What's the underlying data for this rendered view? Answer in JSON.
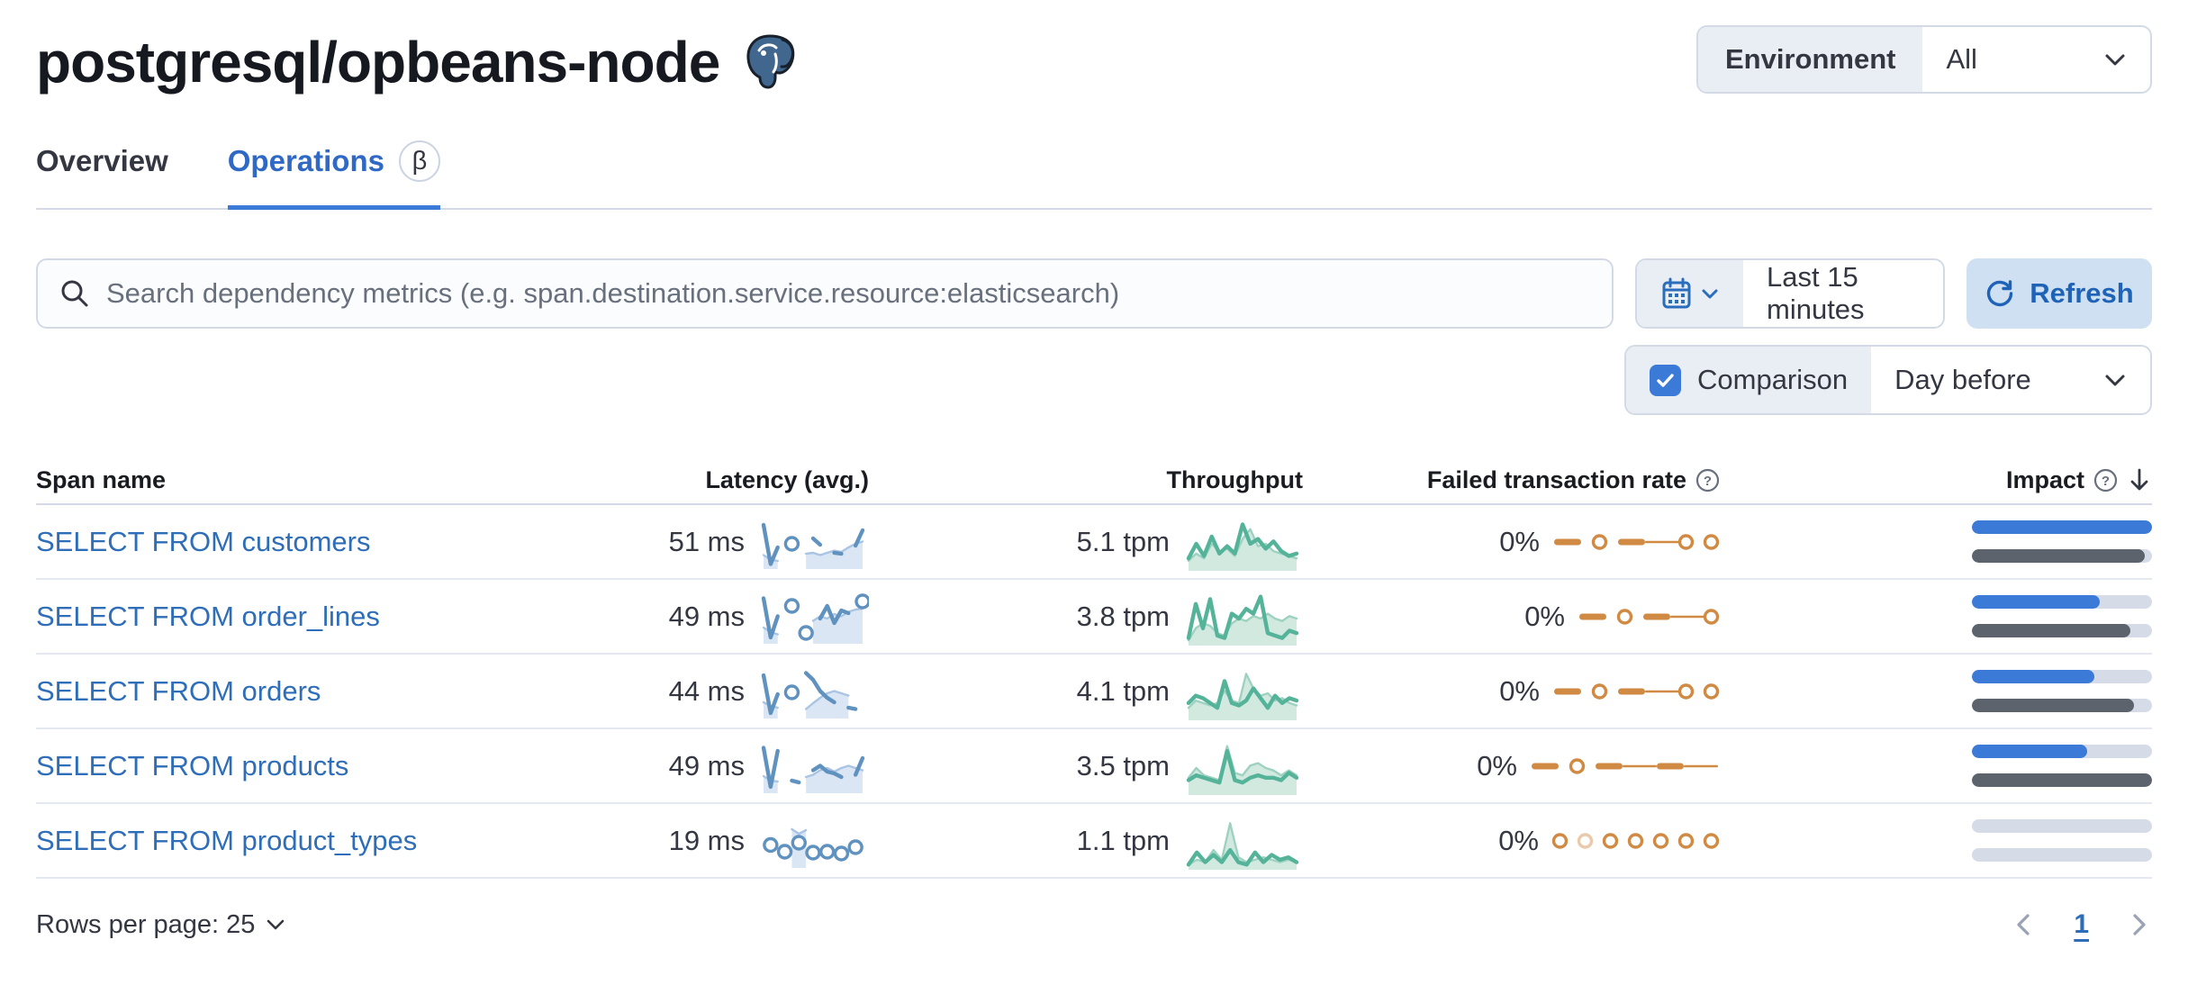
{
  "header": {
    "title": "postgresql/opbeans-node",
    "environment_label": "Environment",
    "environment_value": "All"
  },
  "tabs": [
    {
      "label": "Overview",
      "active": false
    },
    {
      "label": "Operations",
      "active": true,
      "badge": "β"
    }
  ],
  "toolbar": {
    "search_placeholder": "Search dependency metrics (e.g. span.destination.service.resource:elasticsearch)",
    "time_range": "Last 15 minutes",
    "refresh_label": "Refresh",
    "comparison_label": "Comparison",
    "comparison_checked": true,
    "comparison_value": "Day before"
  },
  "table": {
    "headers": {
      "span_name": "Span name",
      "latency": "Latency (avg.)",
      "throughput": "Throughput",
      "failed_rate": "Failed transaction rate",
      "impact": "Impact"
    },
    "rows": [
      {
        "span_name": "SELECT FROM customers",
        "latency": "51 ms",
        "throughput": "5.1 tpm",
        "failed_rate": "0%",
        "impact": {
          "current": 1.0,
          "previous": 0.96
        },
        "latency_spark": {
          "current": [
            0.92,
            0.05,
            0.42,
            null,
            0.5,
            null,
            null,
            0.62,
            0.48,
            null,
            0.3,
            0.28,
            null,
            0.46,
            0.8
          ],
          "previous": [
            0.25,
            0.15,
            0.12,
            null,
            null,
            null,
            0.28,
            0.3,
            0.25,
            0.3,
            0.35,
            0.32,
            0.42,
            0.5,
            0.55
          ]
        },
        "throughput_spark": {
          "current": [
            0.2,
            0.5,
            0.25,
            0.65,
            0.3,
            0.45,
            0.3,
            0.9,
            0.5,
            0.6,
            0.4,
            0.55,
            0.35,
            0.25,
            0.3
          ],
          "previous": [
            0.15,
            0.3,
            0.2,
            0.5,
            0.35,
            0.4,
            0.25,
            0.6,
            0.8,
            0.45,
            0.5,
            0.35,
            0.3,
            0.25,
            0.2
          ]
        },
        "failed_spark": [
          "dash",
          "dot",
          "dash",
          "line",
          "dot",
          "dot"
        ]
      },
      {
        "span_name": "SELECT FROM order_lines",
        "latency": "49 ms",
        "throughput": "3.8 tpm",
        "failed_rate": "0%",
        "impact": {
          "current": 0.71,
          "previous": 0.88
        },
        "latency_spark": {
          "current": [
            0.95,
            0.08,
            0.55,
            null,
            0.78,
            null,
            0.18,
            null,
            0.5,
            0.78,
            0.4,
            0.68,
            0.62,
            null,
            0.88
          ],
          "previous": [
            0.3,
            0.2,
            0.15,
            null,
            null,
            null,
            null,
            0.45,
            0.55,
            0.5,
            0.6,
            0.55,
            0.65,
            0.7,
            0.72
          ]
        },
        "throughput_spark": {
          "current": [
            0.1,
            0.8,
            0.3,
            0.9,
            0.15,
            0.1,
            0.6,
            0.5,
            0.7,
            0.6,
            0.95,
            0.2,
            0.15,
            0.1,
            0.25,
            0.2
          ],
          "previous": [
            0.05,
            0.3,
            0.4,
            0.35,
            0.2,
            0.15,
            0.4,
            0.5,
            0.45,
            0.55,
            0.5,
            0.6,
            0.5,
            0.45,
            0.55,
            0.5
          ]
        },
        "failed_spark": [
          "dash",
          "dot",
          "dash",
          "line",
          "dot"
        ]
      },
      {
        "span_name": "SELECT FROM orders",
        "latency": "44 ms",
        "throughput": "4.1 tpm",
        "failed_rate": "0%",
        "impact": {
          "current": 0.68,
          "previous": 0.9
        },
        "latency_spark": {
          "current": [
            0.9,
            0.06,
            0.48,
            null,
            0.52,
            null,
            0.95,
            0.8,
            0.55,
            0.4,
            0.3,
            null,
            0.18,
            0.15,
            null
          ],
          "previous": [
            0.3,
            0.22,
            0.18,
            null,
            null,
            null,
            0.15,
            0.28,
            0.4,
            0.5,
            0.55,
            0.5,
            0.45,
            null,
            null
          ]
        },
        "throughput_spark": {
          "current": [
            0.3,
            0.45,
            0.4,
            0.3,
            0.2,
            0.75,
            0.3,
            0.25,
            0.35,
            0.6,
            0.4,
            0.2,
            0.45,
            0.3,
            0.4,
            0.35
          ],
          "previous": [
            0.2,
            0.35,
            0.3,
            0.25,
            0.3,
            0.55,
            0.35,
            0.3,
            0.9,
            0.6,
            0.45,
            0.5,
            0.35,
            0.4,
            0.3,
            0.25
          ]
        },
        "failed_spark": [
          "dash",
          "dot",
          "dash",
          "line",
          "dot",
          "dot"
        ]
      },
      {
        "span_name": "SELECT FROM products",
        "latency": "49 ms",
        "throughput": "3.5 tpm",
        "failed_rate": "0%",
        "impact": {
          "current": 0.64,
          "previous": 1.0
        },
        "latency_spark": {
          "current": [
            0.95,
            0.08,
            0.88,
            null,
            0.22,
            0.18,
            null,
            0.45,
            0.55,
            0.42,
            0.38,
            0.3,
            null,
            0.35,
            0.72
          ],
          "previous": [
            0.32,
            0.22,
            0.2,
            null,
            null,
            null,
            0.3,
            0.35,
            0.45,
            0.5,
            0.42,
            0.5,
            0.55,
            0.5,
            0.45
          ]
        },
        "throughput_spark": {
          "current": [
            0.25,
            0.35,
            0.3,
            0.25,
            0.2,
            0.85,
            0.25,
            0.2,
            0.3,
            0.35,
            0.3,
            0.3,
            0.25,
            0.4,
            0.3
          ],
          "previous": [
            0.3,
            0.5,
            0.35,
            0.3,
            0.25,
            0.95,
            0.4,
            0.35,
            0.55,
            0.6,
            0.5,
            0.45,
            0.35,
            0.45,
            0.35
          ]
        },
        "failed_spark": [
          "dash",
          "dot",
          "dash",
          "line",
          "dash",
          "line"
        ]
      },
      {
        "span_name": "SELECT FROM product_types",
        "latency": "19 ms",
        "throughput": "1.1 tpm",
        "failed_rate": "0%",
        "impact": {
          "current": 0.0,
          "previous": 0.0
        },
        "latency_spark": {
          "current": [
            null,
            0.45,
            null,
            0.3,
            null,
            0.5,
            null,
            0.28,
            null,
            0.3,
            null,
            0.26,
            null,
            0.4,
            null
          ],
          "previous": [
            null,
            null,
            null,
            null,
            0.8,
            0.7,
            0.78,
            null,
            null,
            null,
            null,
            null,
            null,
            null,
            null
          ]
        },
        "throughput_spark": {
          "current": [
            0.05,
            0.3,
            0.1,
            0.25,
            0.1,
            0.35,
            0.1,
            0.05,
            0.3,
            0.1,
            0.25,
            0.15,
            0.2,
            0.1
          ],
          "previous": [
            0.05,
            0.15,
            0.1,
            0.35,
            0.15,
            0.9,
            0.2,
            0.1,
            0.15,
            0.2,
            0.15,
            0.1,
            0.15,
            0.1
          ]
        },
        "failed_spark": [
          "dot",
          "dot-light",
          "dot",
          "dot",
          "dot",
          "dot",
          "dot"
        ]
      }
    ]
  },
  "pagination": {
    "rows_per_page_label": "Rows per page: 25",
    "page": "1"
  },
  "colors": {
    "primary_link": "#2e6db8",
    "tab_active": "#3069c5",
    "latency_line": "#6092c0",
    "latency_fill": "#dbe6f4",
    "latency_prev_line": "#aac5e3",
    "throughput_line": "#54b399",
    "throughput_fill": "#d2e9e0",
    "throughput_prev_line": "#9ed2c0",
    "failed": "#d08a43",
    "impact_current": "#3b7ad7",
    "impact_previous": "#5d636d",
    "impact_track": "#d6dce7"
  }
}
